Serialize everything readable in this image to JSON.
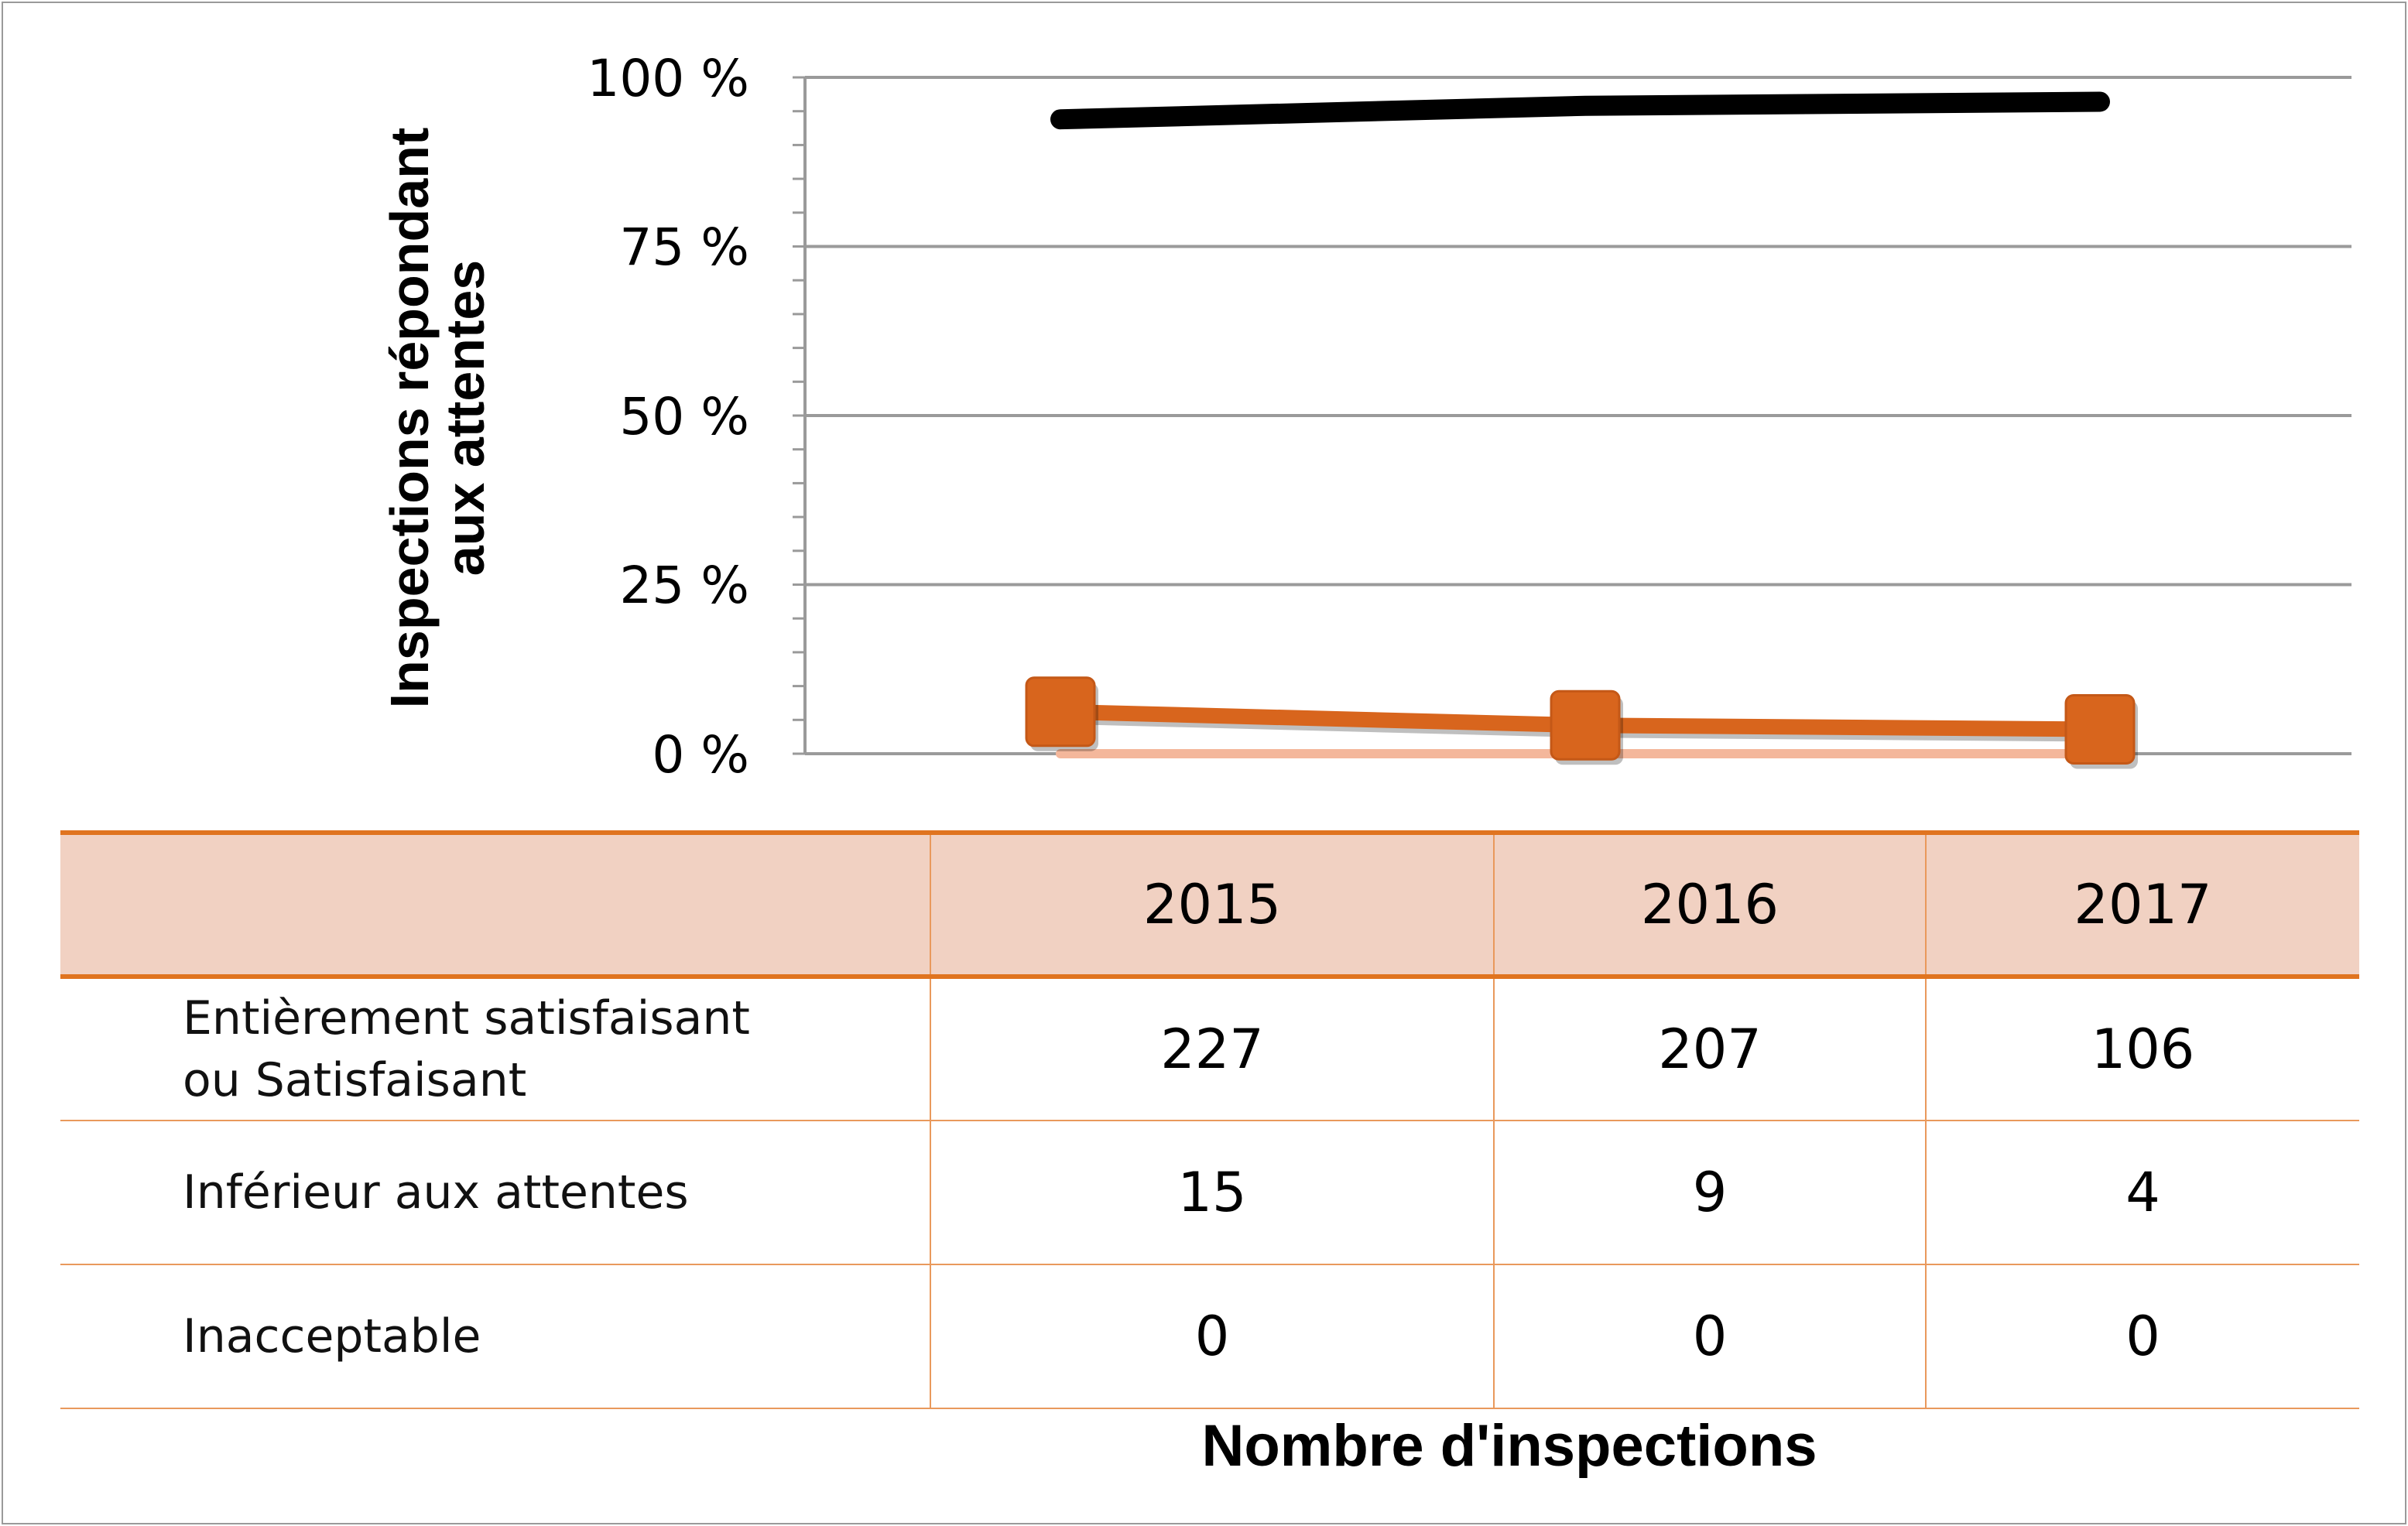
{
  "chart_data": {
    "type": "line",
    "ylabel_lines": [
      "Inspections répondant",
      "aux attentes"
    ],
    "xlabel": "Nombre d'inspections",
    "yticks": [
      "100 %",
      "75 %",
      "50 %",
      "25 %",
      "0 %"
    ],
    "ytick_values": [
      100,
      75,
      50,
      25,
      0
    ],
    "ylim": [
      0,
      100
    ],
    "grid": true,
    "categories": [
      "2015",
      "2016",
      "2017"
    ],
    "series": [
      {
        "key": "satisfaisant",
        "color": "#000000",
        "marker": "none",
        "percent": [
          93.8,
          95.8,
          96.4
        ]
      },
      {
        "key": "inferieur",
        "color": "#d8651d",
        "marker": "square",
        "percent": [
          6.2,
          4.2,
          3.6
        ]
      },
      {
        "key": "inacceptable",
        "color": "#f4b79b",
        "marker": "none",
        "percent": [
          0,
          0,
          0
        ]
      }
    ]
  },
  "table": {
    "header": [
      "",
      "2015",
      "2016",
      "2017"
    ],
    "rows": [
      {
        "label_lines": [
          "Entièrement satisfaisant",
          "ou Satisfaisant"
        ],
        "values": [
          "227",
          "207",
          "106"
        ]
      },
      {
        "label_lines": [
          "Inférieur aux attentes"
        ],
        "values": [
          "15",
          "9",
          "4"
        ]
      },
      {
        "label_lines": [
          "Inacceptable"
        ],
        "values": [
          "0",
          "0",
          "0"
        ]
      }
    ]
  }
}
